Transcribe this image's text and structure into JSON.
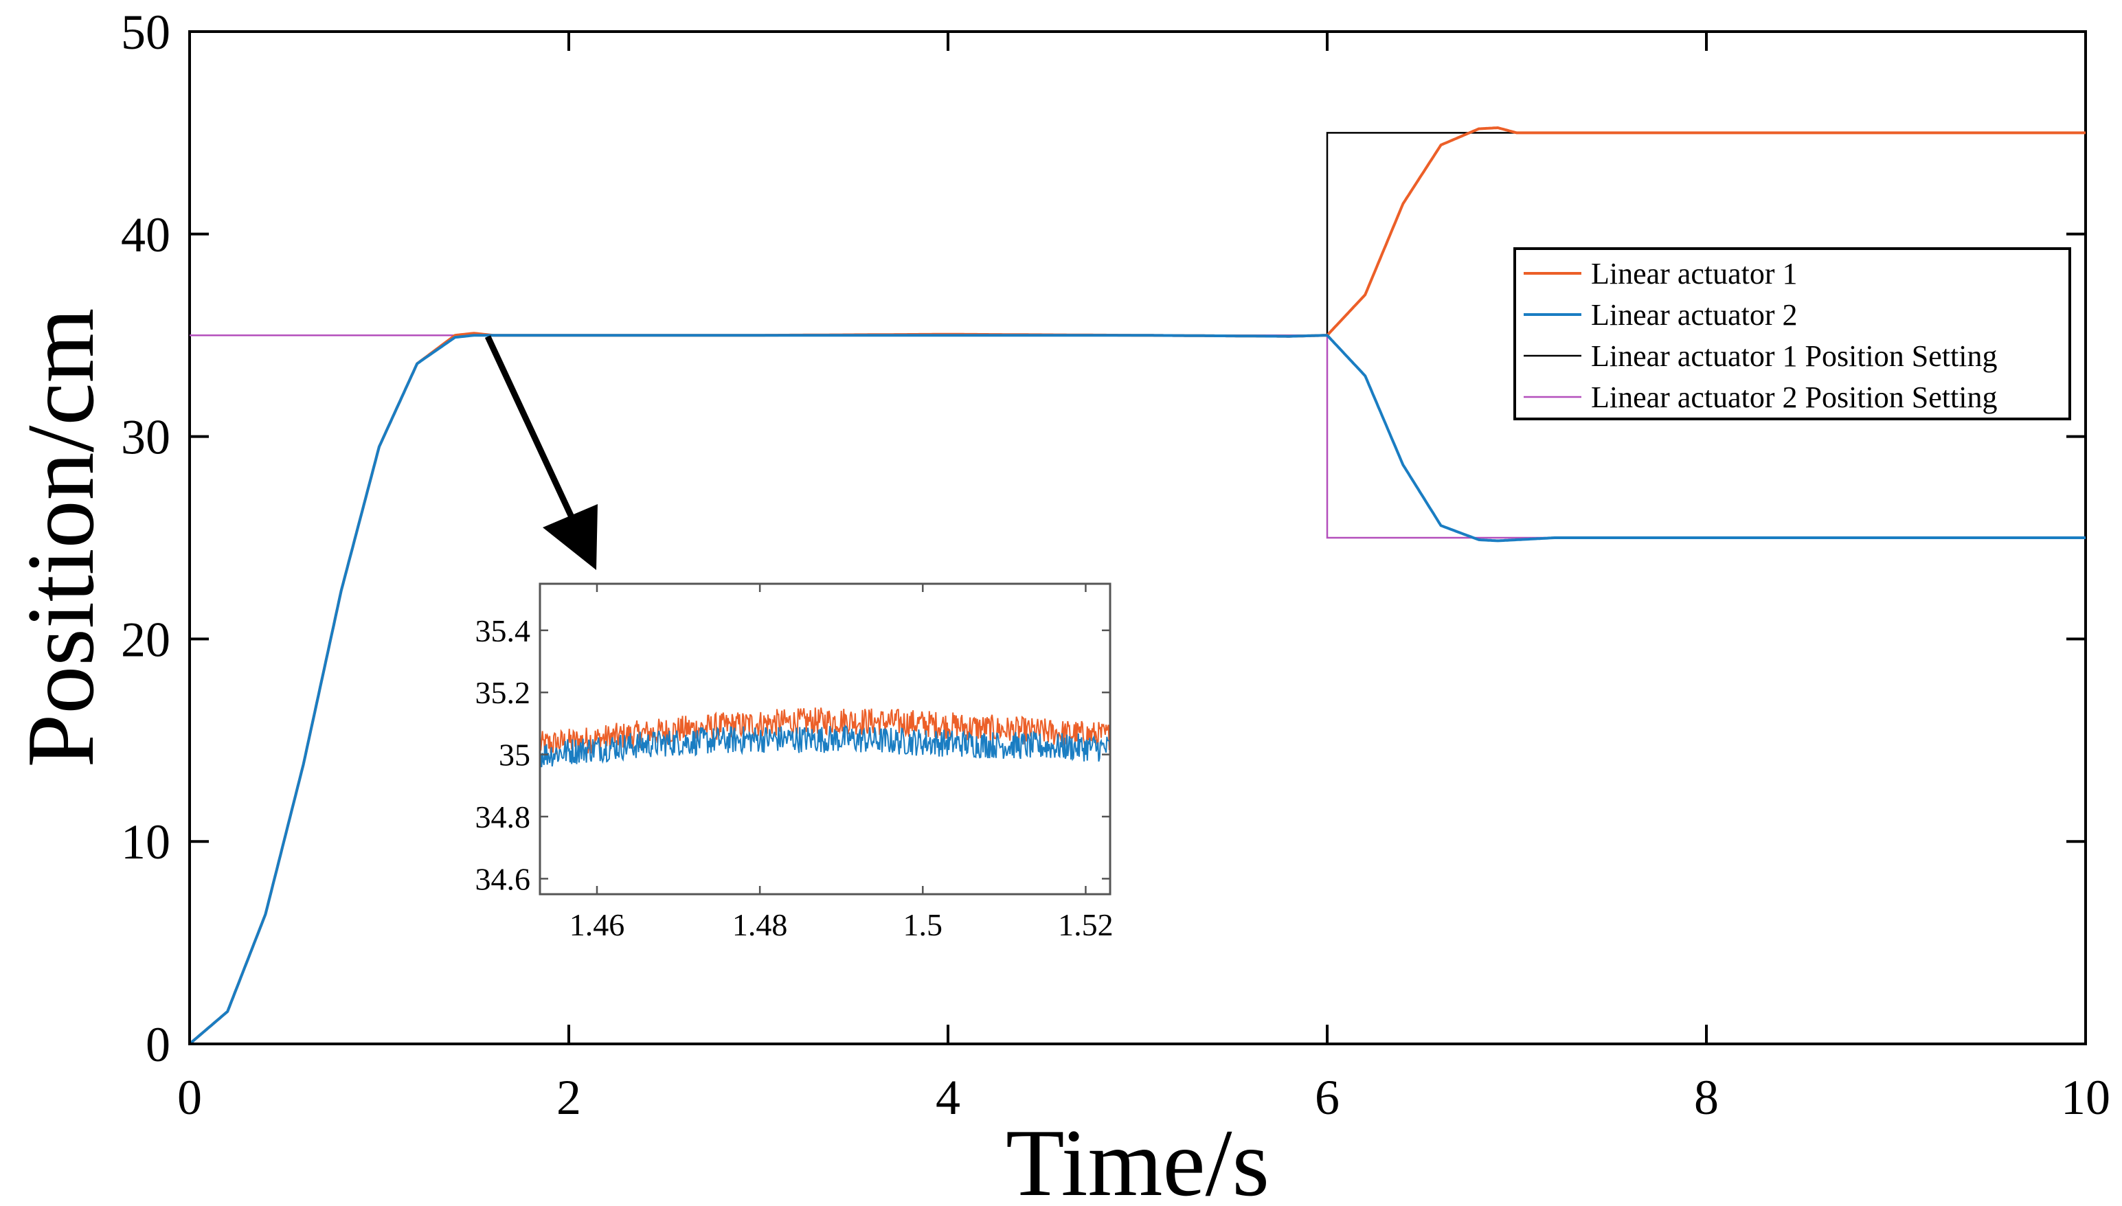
{
  "chart_data": {
    "type": "line",
    "title": "",
    "xlabel": "Time/s",
    "ylabel": "Position/cm",
    "xlim": [
      0,
      10
    ],
    "ylim": [
      0,
      50
    ],
    "xticks": [
      "0",
      "2",
      "4",
      "6",
      "8",
      "10"
    ],
    "yticks": [
      "0",
      "10",
      "20",
      "30",
      "40",
      "50"
    ],
    "grid": false,
    "legend_position": "right",
    "colors": {
      "actuator1": "#ec5f28",
      "actuator2": "#1a7dc2",
      "setting1": "#000000",
      "setting2": "#b44fbc"
    },
    "series": [
      {
        "name": "Linear actuator 1",
        "key": "a1",
        "x": [
          0,
          0.2,
          0.4,
          0.6,
          0.8,
          1.0,
          1.2,
          1.4,
          1.5,
          1.6,
          2.0,
          3.0,
          4.0,
          5.0,
          5.8,
          6.0,
          6.2,
          6.4,
          6.6,
          6.8,
          6.9,
          7.0,
          7.2,
          8.0,
          9.0,
          10.0
        ],
        "values": [
          0,
          1.6,
          6.4,
          13.8,
          22.4,
          29.5,
          33.6,
          35.0,
          35.1,
          35.0,
          35.0,
          35.0,
          35.05,
          35.0,
          34.95,
          35.0,
          37.0,
          41.5,
          44.4,
          45.2,
          45.25,
          45.0,
          45.0,
          45.0,
          45.0,
          45.0
        ]
      },
      {
        "name": "Linear actuator 2",
        "key": "a2",
        "x": [
          0,
          0.2,
          0.4,
          0.6,
          0.8,
          1.0,
          1.2,
          1.4,
          1.5,
          1.6,
          2.0,
          3.0,
          4.0,
          5.0,
          5.8,
          6.0,
          6.2,
          6.4,
          6.6,
          6.8,
          6.9,
          7.0,
          7.2,
          8.0,
          9.0,
          10.0
        ],
        "values": [
          0,
          1.6,
          6.4,
          13.8,
          22.4,
          29.5,
          33.6,
          34.9,
          35.0,
          35.0,
          35.0,
          35.0,
          35.0,
          35.0,
          34.95,
          35.0,
          33.0,
          28.6,
          25.6,
          24.9,
          24.85,
          24.9,
          25.0,
          25.0,
          25.0,
          25.0
        ]
      },
      {
        "name": "Linear actuator 1 Position Setting",
        "key": "s1",
        "x": [
          6.0,
          6.0,
          10.0
        ],
        "values": [
          35,
          45,
          45
        ]
      },
      {
        "name": "Linear actuator 2 Position Setting",
        "key": "s2",
        "x": [
          0,
          6.0,
          6.0,
          10.0
        ],
        "values": [
          35,
          35,
          25,
          25
        ]
      }
    ],
    "inset": {
      "xlim": [
        1.453,
        1.523
      ],
      "ylim": [
        34.55,
        35.55
      ],
      "xticks": [
        "1.46",
        "1.48",
        "1.5",
        "1.52"
      ],
      "yticks": [
        "34.6",
        "34.8",
        "35",
        "35.2",
        "35.4"
      ],
      "series": [
        {
          "name": "Linear actuator 1",
          "key": "a1",
          "x": [
            1.453,
            1.46,
            1.47,
            1.48,
            1.49,
            1.5,
            1.51,
            1.523
          ],
          "values": [
            35.03,
            35.05,
            35.08,
            35.1,
            35.11,
            35.1,
            35.08,
            35.06
          ]
        },
        {
          "name": "Linear actuator 2",
          "key": "a2",
          "x": [
            1.453,
            1.46,
            1.47,
            1.48,
            1.49,
            1.5,
            1.51,
            1.523
          ],
          "values": [
            35.0,
            35.02,
            35.04,
            35.05,
            35.05,
            35.04,
            35.03,
            35.02
          ]
        }
      ]
    }
  }
}
